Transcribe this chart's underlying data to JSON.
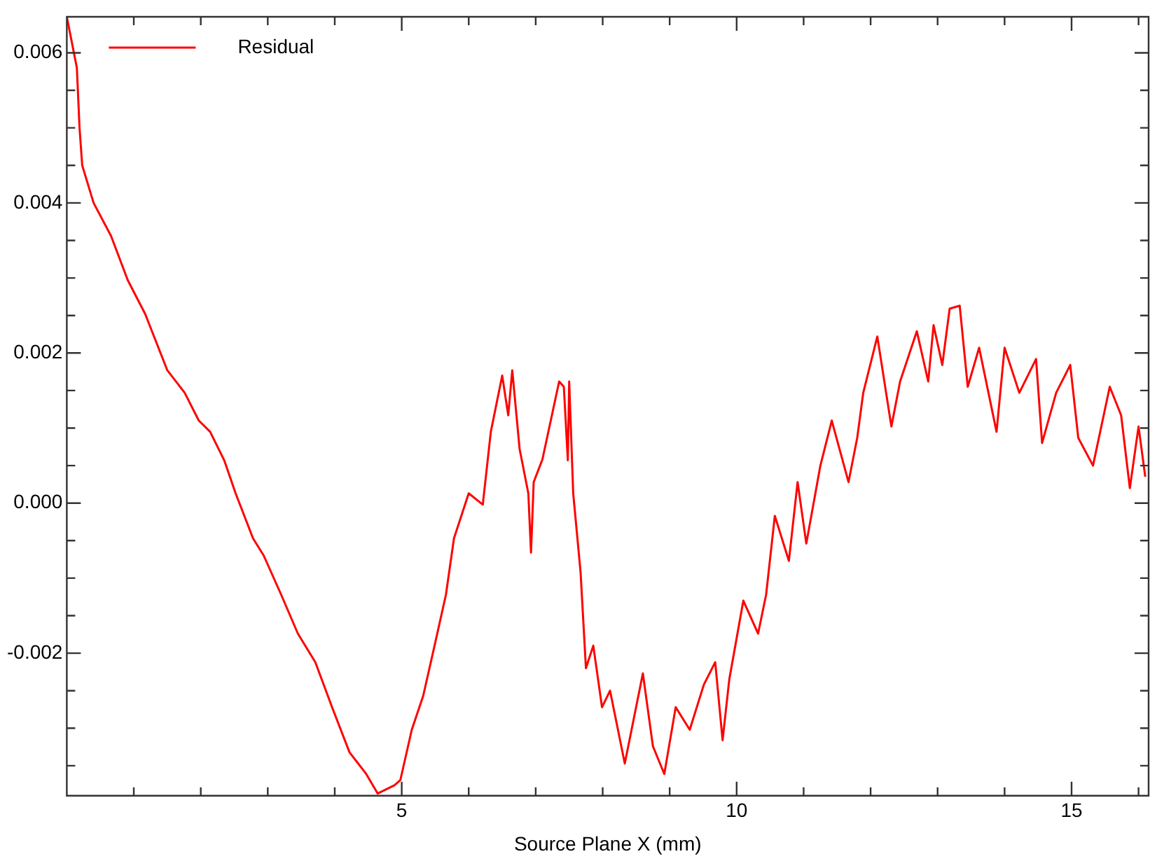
{
  "chart_data": {
    "type": "line",
    "xlabel": "Source Plane X (mm)",
    "xlim": [
      0,
      16.15
    ],
    "ylim": [
      -0.0039,
      0.00648
    ],
    "xticks": [
      {
        "value": 1,
        "label": null
      },
      {
        "value": 2,
        "label": null
      },
      {
        "value": 3,
        "label": null
      },
      {
        "value": 4,
        "label": null
      },
      {
        "value": 5,
        "label": "5"
      },
      {
        "value": 6,
        "label": null
      },
      {
        "value": 7,
        "label": null
      },
      {
        "value": 8,
        "label": null
      },
      {
        "value": 9,
        "label": null
      },
      {
        "value": 10,
        "label": "10"
      },
      {
        "value": 11,
        "label": null
      },
      {
        "value": 12,
        "label": null
      },
      {
        "value": 13,
        "label": null
      },
      {
        "value": 14,
        "label": null
      },
      {
        "value": 15,
        "label": "15"
      },
      {
        "value": 16,
        "label": null
      }
    ],
    "yticks": [
      {
        "value": -0.0035,
        "label": null
      },
      {
        "value": -0.003,
        "label": null
      },
      {
        "value": -0.0025,
        "label": null
      },
      {
        "value": -0.002,
        "label": "-0.002"
      },
      {
        "value": -0.0015,
        "label": null
      },
      {
        "value": -0.001,
        "label": null
      },
      {
        "value": -0.0005,
        "label": null
      },
      {
        "value": 0,
        "label": "0.000"
      },
      {
        "value": 0.0005,
        "label": null
      },
      {
        "value": 0.001,
        "label": null
      },
      {
        "value": 0.0015,
        "label": null
      },
      {
        "value": 0.002,
        "label": "0.002"
      },
      {
        "value": 0.0025,
        "label": null
      },
      {
        "value": 0.003,
        "label": null
      },
      {
        "value": 0.0035,
        "label": null
      },
      {
        "value": 0.004,
        "label": "0.004"
      },
      {
        "value": 0.0045,
        "label": null
      },
      {
        "value": 0.005,
        "label": null
      },
      {
        "value": 0.0055,
        "label": null
      },
      {
        "value": 0.006,
        "label": "0.006"
      }
    ],
    "grid": false,
    "legend": "top left",
    "marker": "none",
    "line_style": "solid",
    "series": [
      {
        "name": "Residual",
        "color": "#ff0000",
        "x": [
          0,
          0.15,
          0.19,
          0.23,
          0.4,
          0.66,
          0.91,
          1.17,
          1.5,
          1.76,
          1.97,
          2.14,
          2.35,
          2.52,
          2.78,
          2.94,
          3.2,
          3.45,
          3.71,
          3.96,
          4.22,
          4.47,
          4.64,
          4.89,
          4.98,
          5.15,
          5.32,
          5.49,
          5.66,
          5.78,
          6.0,
          6.21,
          6.33,
          6.5,
          6.59,
          6.65,
          6.76,
          6.89,
          6.93,
          6.97,
          7.1,
          7.35,
          7.42,
          7.48,
          7.5,
          7.56,
          7.67,
          7.75,
          7.86,
          7.99,
          8.11,
          8.33,
          8.6,
          8.75,
          8.92,
          9.09,
          9.3,
          9.51,
          9.68,
          9.79,
          9.89,
          10.1,
          10.32,
          10.44,
          10.57,
          10.78,
          10.91,
          11.04,
          11.25,
          11.42,
          11.67,
          11.8,
          11.89,
          12.1,
          12.31,
          12.44,
          12.69,
          12.86,
          12.94,
          13.07,
          13.18,
          13.33,
          13.45,
          13.62,
          13.88,
          14.0,
          14.22,
          14.47,
          14.56,
          14.77,
          14.98,
          15.1,
          15.32,
          15.57,
          15.74,
          15.87,
          16.0,
          16.1
        ],
        "values": [
          0.00648,
          0.0058,
          0.005,
          0.0045,
          0.004,
          0.00356,
          0.00297,
          0.00252,
          0.00177,
          0.00147,
          0.0011,
          0.00095,
          0.00057,
          0.00013,
          -0.00047,
          -0.0007,
          -0.00122,
          -0.00174,
          -0.00212,
          -0.00272,
          -0.00332,
          -0.00361,
          -0.00387,
          -0.00376,
          -0.00369,
          -0.00302,
          -0.00257,
          -0.0019,
          -0.00122,
          -0.00047,
          0.00013,
          -2e-05,
          0.00095,
          0.0017,
          0.00117,
          0.00177,
          0.00072,
          0.00013,
          -0.00066,
          0.00028,
          0.00058,
          0.00162,
          0.00155,
          0.00057,
          0.00162,
          0.00013,
          -0.00092,
          -0.0022,
          -0.0019,
          -0.00272,
          -0.0025,
          -0.00347,
          -0.00227,
          -0.00324,
          -0.00361,
          -0.00272,
          -0.00302,
          -0.00242,
          -0.00212,
          -0.00316,
          -0.00235,
          -0.0013,
          -0.00174,
          -0.00122,
          -0.00017,
          -0.00077,
          0.00028,
          -0.00054,
          0.0005,
          0.0011,
          0.00028,
          0.00087,
          0.00147,
          0.00222,
          0.00102,
          0.00162,
          0.00229,
          0.00162,
          0.00237,
          0.00184,
          0.00259,
          0.00263,
          0.00155,
          0.00207,
          0.00095,
          0.00207,
          0.00147,
          0.00192,
          0.0008,
          0.00147,
          0.00184,
          0.00087,
          0.0005,
          0.00155,
          0.00117,
          0.0002,
          0.00102,
          0.00035
        ]
      }
    ]
  }
}
